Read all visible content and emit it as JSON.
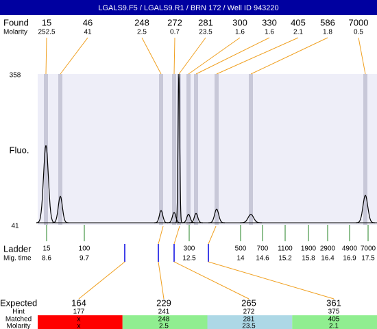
{
  "title": "LGALS9.F5 / LGALS9.R1 / BRN 172 / Well ID 943220",
  "found": {
    "label": "Found",
    "molarity_label": "Molarity",
    "sizes": [
      15,
      46,
      248,
      272,
      281,
      300,
      330,
      405,
      586,
      7000
    ],
    "molarity": [
      252.5,
      41,
      2.5,
      0.7,
      23.5,
      1.6,
      1.6,
      2.1,
      1.8,
      0.5
    ]
  },
  "electropherogram": {
    "y_label": "Fluo.",
    "ylim": [
      41,
      358
    ],
    "yticks": [
      358,
      41
    ],
    "peak_heights": [
      208,
      101,
      71,
      67,
      358,
      63,
      65,
      74,
      63,
      103
    ]
  },
  "ladder": {
    "label": "Ladder",
    "time_label": "Mig. time",
    "sizes": [
      15,
      100,
      300,
      500,
      700,
      1100,
      1900,
      2900,
      4900,
      7000
    ],
    "times": [
      8.6,
      9.7,
      12.5,
      14,
      14.6,
      15.2,
      15.8,
      16.4,
      16.9,
      17.5
    ]
  },
  "expected": {
    "label": "Expected",
    "hint_label": "Hint",
    "matched_label": "Matched",
    "molarity_label": "Molarity",
    "sizes": [
      164,
      229,
      265,
      361
    ],
    "hint": [
      177,
      241,
      272,
      375
    ],
    "matched": [
      "x",
      248,
      281,
      405
    ],
    "molarity": [
      "x",
      2.5,
      23.5,
      2.1
    ],
    "colors": [
      "#ff0000",
      "#90ee90",
      "#add8e6",
      "#90ee90"
    ]
  }
}
